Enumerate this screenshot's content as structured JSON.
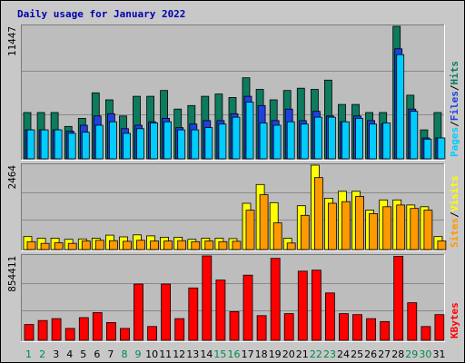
{
  "chart_data": [
    {
      "type": "bar",
      "title": "Daily usage for January 2022",
      "categories": [
        "1",
        "2",
        "3",
        "4",
        "5",
        "6",
        "7",
        "8",
        "9",
        "10",
        "11",
        "12",
        "13",
        "14",
        "15",
        "16",
        "17",
        "18",
        "19",
        "20",
        "21",
        "22",
        "23",
        "24",
        "25",
        "26",
        "27",
        "28",
        "29",
        "30",
        "31"
      ],
      "weekend_days": [
        "1",
        "2",
        "8",
        "9",
        "15",
        "16",
        "22",
        "23",
        "29",
        "30"
      ],
      "ymax_label": "11447",
      "ylim": [
        0,
        11447
      ],
      "legend": [
        "Pages",
        "Files",
        "Hits"
      ],
      "series": [
        {
          "name": "Hits",
          "color": "#0e7a5e",
          "values": [
            4000,
            4000,
            4000,
            2800,
            3500,
            5700,
            5100,
            3700,
            5400,
            5400,
            5900,
            4300,
            4600,
            5400,
            5600,
            5300,
            7000,
            6000,
            5100,
            5900,
            6100,
            6000,
            6800,
            4700,
            4700,
            4000,
            4000,
            11447,
            5500,
            2500,
            4000
          ]
        },
        {
          "name": "Files",
          "color": "#2040e0",
          "values": [
            2500,
            2500,
            2500,
            2400,
            2900,
            3700,
            3900,
            2600,
            2900,
            3200,
            3500,
            2700,
            3000,
            3300,
            3300,
            3900,
            5400,
            4600,
            3300,
            4300,
            3300,
            4100,
            3700,
            3200,
            3700,
            3300,
            3000,
            9500,
            4300,
            1800,
            1800
          ]
        },
        {
          "name": "Pages",
          "color": "#00ccff",
          "values": [
            2500,
            2500,
            2500,
            2200,
            2300,
            2900,
            3200,
            2200,
            2600,
            3100,
            3200,
            2500,
            2500,
            2700,
            3000,
            3600,
            4900,
            3100,
            2900,
            3200,
            3000,
            3600,
            3600,
            3200,
            3500,
            3000,
            3100,
            9000,
            4100,
            1700,
            1800
          ]
        }
      ]
    },
    {
      "type": "bar",
      "ymax_label": "2464",
      "ylim": [
        0,
        2464
      ],
      "legend": [
        "Sites",
        "Visits"
      ],
      "series": [
        {
          "name": "Visits",
          "color": "#ffff00",
          "values": [
            380,
            330,
            330,
            300,
            310,
            330,
            420,
            370,
            430,
            400,
            360,
            360,
            300,
            330,
            330,
            320,
            1350,
            1900,
            1370,
            330,
            1280,
            2464,
            1500,
            1700,
            1700,
            1150,
            1450,
            1450,
            1300,
            1250,
            380
          ]
        },
        {
          "name": "Sites",
          "color": "#ff9900",
          "values": [
            230,
            180,
            200,
            180,
            250,
            270,
            260,
            240,
            270,
            250,
            250,
            260,
            230,
            250,
            230,
            240,
            1150,
            1600,
            780,
            190,
            1000,
            2100,
            1350,
            1400,
            1550,
            1050,
            1250,
            1300,
            1200,
            1150,
            250
          ]
        }
      ]
    },
    {
      "type": "bar",
      "ymax_label": "854411",
      "ylim": [
        0,
        854411
      ],
      "legend": [
        "KBytes"
      ],
      "series": [
        {
          "name": "KBytes",
          "color": "#ff0000",
          "values": [
            160000,
            200000,
            220000,
            120000,
            230000,
            280000,
            180000,
            120000,
            570000,
            140000,
            570000,
            220000,
            530000,
            854411,
            610000,
            290000,
            660000,
            250000,
            830000,
            270000,
            700000,
            710000,
            480000,
            270000,
            260000,
            220000,
            190000,
            850000,
            380000,
            140000,
            260000
          ]
        }
      ]
    }
  ]
}
